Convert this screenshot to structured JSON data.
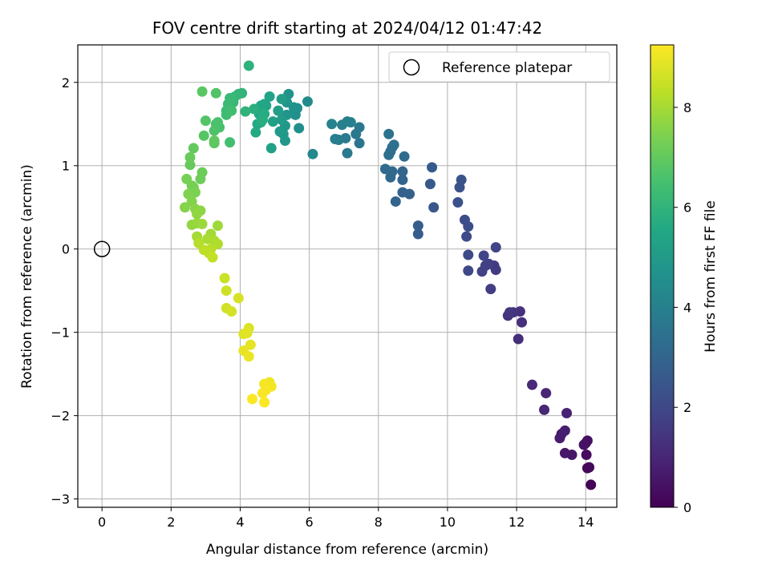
{
  "chart_data": {
    "type": "scatter",
    "title": "FOV centre drift starting at 2024/04/12 01:47:42",
    "xlabel": "Angular distance from reference (arcmin)",
    "ylabel": "Rotation from reference (arcmin)",
    "xlim": [
      -0.7,
      14.9
    ],
    "ylim": [
      -3.1,
      2.45
    ],
    "xticks": [
      0,
      2,
      4,
      6,
      8,
      10,
      12,
      14
    ],
    "yticks": [
      -3,
      -2,
      -1,
      0,
      1,
      2
    ],
    "grid": true,
    "legend": {
      "placement": "top-right",
      "entries": [
        "Reference platepar"
      ]
    },
    "reference_point": {
      "x": 0,
      "y": 0,
      "label": "Reference platepar"
    },
    "colorbar": {
      "label": "Hours from first FF file",
      "colormap": "viridis",
      "range": [
        0,
        9.25
      ],
      "ticks": [
        0,
        2,
        4,
        6,
        8
      ]
    },
    "points": [
      [
        14.15,
        -2.83,
        0.05
      ],
      [
        14.05,
        -2.63,
        0.15
      ],
      [
        14.1,
        -2.62,
        0.2
      ],
      [
        14.02,
        -2.47,
        0.3
      ],
      [
        14.0,
        -2.33,
        0.35
      ],
      [
        14.05,
        -2.3,
        0.4
      ],
      [
        13.95,
        -2.35,
        0.45
      ],
      [
        13.6,
        -2.47,
        0.55
      ],
      [
        13.4,
        -2.45,
        0.6
      ],
      [
        13.3,
        -2.22,
        0.7
      ],
      [
        13.25,
        -2.27,
        0.75
      ],
      [
        13.4,
        -2.18,
        0.8
      ],
      [
        13.45,
        -1.97,
        0.85
      ],
      [
        12.85,
        -1.73,
        0.95
      ],
      [
        12.8,
        -1.93,
        1.0
      ],
      [
        12.45,
        -1.63,
        1.1
      ],
      [
        12.05,
        -1.08,
        1.2
      ],
      [
        12.15,
        -0.88,
        1.25
      ],
      [
        12.1,
        -0.75,
        1.3
      ],
      [
        11.9,
        -0.76,
        1.35
      ],
      [
        11.75,
        -0.8,
        1.4
      ],
      [
        11.8,
        -0.76,
        1.45
      ],
      [
        11.35,
        -0.2,
        1.55
      ],
      [
        11.4,
        -0.25,
        1.6
      ],
      [
        11.25,
        -0.48,
        1.65
      ],
      [
        11.2,
        -0.18,
        1.7
      ],
      [
        11.1,
        -0.2,
        1.75
      ],
      [
        11.0,
        -0.27,
        1.8
      ],
      [
        11.05,
        -0.08,
        1.85
      ],
      [
        11.4,
        0.02,
        1.9
      ],
      [
        10.6,
        -0.26,
        2.0
      ],
      [
        10.6,
        -0.07,
        2.05
      ],
      [
        10.55,
        0.15,
        2.1
      ],
      [
        10.6,
        0.27,
        2.15
      ],
      [
        10.5,
        0.35,
        2.2
      ],
      [
        10.3,
        0.56,
        2.3
      ],
      [
        10.35,
        0.74,
        2.35
      ],
      [
        10.4,
        0.83,
        2.4
      ],
      [
        9.6,
        0.5,
        2.5
      ],
      [
        9.5,
        0.78,
        2.55
      ],
      [
        9.55,
        0.98,
        2.6
      ],
      [
        9.15,
        0.18,
        2.7
      ],
      [
        9.15,
        0.28,
        2.75
      ],
      [
        8.9,
        0.66,
        2.85
      ],
      [
        8.7,
        0.68,
        2.9
      ],
      [
        8.5,
        0.57,
        2.95
      ],
      [
        8.7,
        0.83,
        3.0
      ],
      [
        8.7,
        0.93,
        3.05
      ],
      [
        8.35,
        0.86,
        3.1
      ],
      [
        8.4,
        0.93,
        3.15
      ],
      [
        8.2,
        0.96,
        3.2
      ],
      [
        8.75,
        1.11,
        3.25
      ],
      [
        8.35,
        1.17,
        3.3
      ],
      [
        8.3,
        1.13,
        3.35
      ],
      [
        8.4,
        1.22,
        3.4
      ],
      [
        8.45,
        1.25,
        3.45
      ],
      [
        8.3,
        1.38,
        3.5
      ],
      [
        7.45,
        1.27,
        3.6
      ],
      [
        7.45,
        1.46,
        3.65
      ],
      [
        7.35,
        1.38,
        3.7
      ],
      [
        7.1,
        1.15,
        3.75
      ],
      [
        7.05,
        1.33,
        3.8
      ],
      [
        6.85,
        1.31,
        3.85
      ],
      [
        6.75,
        1.32,
        3.9
      ],
      [
        7.1,
        1.53,
        3.95
      ],
      [
        7.2,
        1.52,
        4.0
      ],
      [
        6.95,
        1.49,
        4.05
      ],
      [
        6.65,
        1.5,
        4.1
      ],
      [
        6.1,
        1.14,
        4.3
      ],
      [
        5.95,
        1.77,
        4.4
      ],
      [
        5.7,
        1.45,
        4.5
      ],
      [
        5.6,
        1.61,
        4.55
      ],
      [
        5.65,
        1.69,
        4.6
      ],
      [
        5.55,
        1.7,
        4.65
      ],
      [
        5.4,
        1.86,
        4.7
      ],
      [
        5.35,
        1.76,
        4.75
      ],
      [
        5.35,
        1.61,
        4.8
      ],
      [
        5.3,
        1.48,
        4.85
      ],
      [
        5.3,
        1.3,
        4.9
      ],
      [
        5.25,
        1.38,
        4.95
      ],
      [
        5.15,
        1.41,
        5.0
      ],
      [
        5.2,
        1.55,
        5.05
      ],
      [
        5.1,
        1.66,
        5.1
      ],
      [
        5.2,
        1.8,
        5.15
      ],
      [
        4.95,
        1.53,
        5.2
      ],
      [
        4.9,
        1.21,
        5.25
      ],
      [
        4.85,
        1.83,
        5.3
      ],
      [
        4.75,
        1.72,
        5.35
      ],
      [
        4.7,
        1.74,
        5.4
      ],
      [
        4.6,
        1.72,
        5.45
      ],
      [
        4.55,
        1.62,
        5.5
      ],
      [
        4.5,
        1.5,
        5.55
      ],
      [
        4.45,
        1.4,
        5.6
      ],
      [
        4.6,
        1.52,
        5.65
      ],
      [
        4.7,
        1.62,
        5.7
      ],
      [
        4.65,
        1.55,
        5.75
      ],
      [
        4.4,
        1.68,
        5.8
      ],
      [
        4.25,
        2.2,
        5.9
      ],
      [
        4.15,
        1.65,
        5.95
      ],
      [
        4.05,
        1.87,
        6.0
      ],
      [
        3.95,
        1.86,
        6.05
      ],
      [
        3.85,
        1.83,
        6.1
      ],
      [
        3.8,
        1.76,
        6.15
      ],
      [
        3.7,
        1.81,
        6.2
      ],
      [
        3.65,
        1.74,
        6.25
      ],
      [
        3.6,
        1.66,
        6.3
      ],
      [
        3.6,
        1.61,
        6.35
      ],
      [
        3.75,
        1.66,
        6.4
      ],
      [
        3.7,
        1.28,
        6.45
      ],
      [
        3.35,
        1.52,
        6.5
      ],
      [
        3.4,
        1.46,
        6.55
      ],
      [
        3.3,
        1.5,
        6.6
      ],
      [
        3.25,
        1.42,
        6.65
      ],
      [
        3.3,
        1.87,
        6.7
      ],
      [
        3.0,
        1.54,
        6.75
      ],
      [
        2.95,
        1.36,
        6.8
      ],
      [
        2.9,
        1.89,
        6.85
      ],
      [
        3.25,
        1.27,
        6.9
      ],
      [
        3.25,
        1.3,
        6.95
      ],
      [
        2.65,
        1.21,
        7.0
      ],
      [
        2.55,
        1.01,
        7.05
      ],
      [
        2.55,
        1.1,
        7.1
      ],
      [
        2.9,
        0.92,
        7.15
      ],
      [
        2.85,
        0.84,
        7.2
      ],
      [
        2.6,
        0.76,
        7.25
      ],
      [
        2.65,
        0.74,
        7.3
      ],
      [
        2.45,
        0.84,
        7.35
      ],
      [
        2.7,
        0.68,
        7.4
      ],
      [
        2.5,
        0.66,
        7.45
      ],
      [
        2.6,
        0.57,
        7.5
      ],
      [
        2.4,
        0.5,
        7.55
      ],
      [
        2.7,
        0.48,
        7.6
      ],
      [
        2.85,
        0.46,
        7.65
      ],
      [
        2.75,
        0.42,
        7.7
      ],
      [
        2.6,
        0.29,
        7.75
      ],
      [
        2.75,
        0.31,
        7.8
      ],
      [
        2.9,
        0.3,
        7.85
      ],
      [
        3.35,
        0.28,
        7.9
      ],
      [
        3.15,
        0.18,
        7.95
      ],
      [
        2.75,
        0.15,
        8.0
      ],
      [
        3.05,
        0.12,
        8.05
      ],
      [
        3.25,
        0.1,
        8.1
      ],
      [
        3.35,
        0.06,
        8.15
      ],
      [
        2.8,
        0.07,
        8.2
      ],
      [
        3.15,
        0.0,
        8.25
      ],
      [
        2.95,
        -0.01,
        8.3
      ],
      [
        3.1,
        -0.05,
        8.35
      ],
      [
        3.2,
        -0.1,
        8.4
      ],
      [
        3.55,
        -0.35,
        8.5
      ],
      [
        3.6,
        -0.5,
        8.55
      ],
      [
        3.6,
        -0.71,
        8.6
      ],
      [
        3.75,
        -0.75,
        8.65
      ],
      [
        3.95,
        -0.59,
        8.7
      ],
      [
        4.25,
        -0.95,
        8.75
      ],
      [
        4.1,
        -1.02,
        8.8
      ],
      [
        4.2,
        -1.01,
        8.85
      ],
      [
        4.3,
        -1.15,
        8.9
      ],
      [
        4.1,
        -1.22,
        8.95
      ],
      [
        4.25,
        -1.29,
        9.0
      ],
      [
        4.85,
        -1.6,
        9.05
      ],
      [
        4.9,
        -1.65,
        9.1
      ],
      [
        4.7,
        -1.62,
        9.12
      ],
      [
        4.75,
        -1.69,
        9.15
      ],
      [
        4.65,
        -1.73,
        9.17
      ],
      [
        4.35,
        -1.8,
        9.2
      ],
      [
        4.7,
        -1.84,
        9.22
      ]
    ]
  }
}
